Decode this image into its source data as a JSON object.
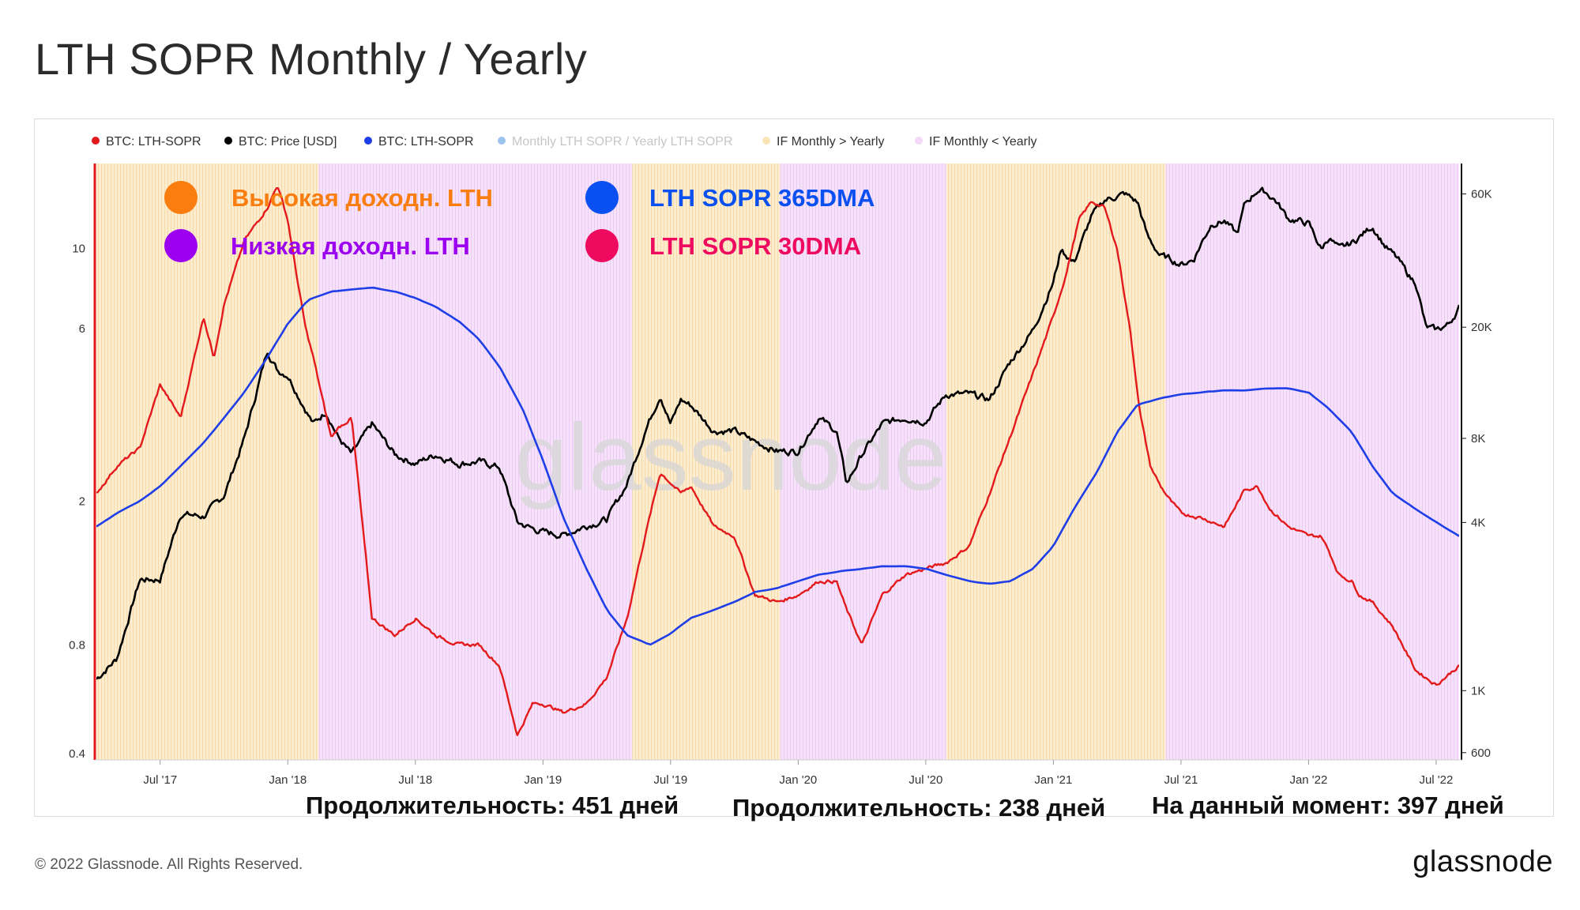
{
  "page": {
    "title": "LTH SOPR Monthly / Yearly",
    "footer": "© 2022 Glassnode. All Rights Reserved.",
    "brand": "glassnode",
    "watermark": "glassnode"
  },
  "legend": [
    {
      "label": "BTC: LTH-SOPR",
      "color": "#e31a1c"
    },
    {
      "label": "BTC: Price [USD]",
      "color": "#000000"
    },
    {
      "label": "BTC: LTH-SOPR",
      "color": "#1f3ee8"
    },
    {
      "label": "Monthly LTH SOPR / Yearly LTH SOPR",
      "color": "#4a90e2",
      "muted": true
    },
    {
      "label": "IF Monthly > Yearly",
      "color": "#fbe3b8"
    },
    {
      "label": "IF Monthly < Yearly",
      "color": "#f3d9f7"
    }
  ],
  "annotations": [
    {
      "label": "Высокая доходн. LTH",
      "dot_color": "#f97d0f",
      "text_color": "#f97d0f"
    },
    {
      "label": "Низкая доходн. LTH",
      "dot_color": "#9b00f0",
      "text_color": "#9b00f0"
    },
    {
      "label": "LTH SOPR 365DMA",
      "dot_color": "#0a4ff0",
      "text_color": "#0a4ff0"
    },
    {
      "label": "LTH SOPR 30DMA",
      "dot_color": "#ee0b5f",
      "text_color": "#ee0b5f"
    }
  ],
  "durations": [
    {
      "label": "Продолжительность: 451 дней"
    },
    {
      "label": "Продолжительность: 238 дней"
    },
    {
      "label": "На данный момент: 397 дней"
    }
  ],
  "chart_data": {
    "type": "line",
    "title": "LTH SOPR Monthly / Yearly",
    "x_range": [
      2017.25,
      2022.59
    ],
    "x_ticks": [
      {
        "label": "Jul '17",
        "t": 2017.5
      },
      {
        "label": "Jan '18",
        "t": 2018.0
      },
      {
        "label": "Jul '18",
        "t": 2018.5
      },
      {
        "label": "Jan '19",
        "t": 2019.0
      },
      {
        "label": "Jul '19",
        "t": 2019.5
      },
      {
        "label": "Jan '20",
        "t": 2020.0
      },
      {
        "label": "Jul '20",
        "t": 2020.5
      },
      {
        "label": "Jan '21",
        "t": 2021.0
      },
      {
        "label": "Jul '21",
        "t": 2021.5
      },
      {
        "label": "Jan '22",
        "t": 2022.0
      },
      {
        "label": "Jul '22",
        "t": 2022.5
      }
    ],
    "y_left": {
      "scale": "log",
      "range": [
        0.4,
        20
      ],
      "ticks": [
        "0.4",
        "0.8",
        "2",
        "6",
        "10"
      ],
      "tick_values": [
        0.4,
        0.8,
        2,
        6,
        10
      ]
    },
    "y_right": {
      "scale": "log",
      "range": [
        580,
        100000
      ],
      "ticks": [
        "600",
        "1K",
        "4K",
        "8K",
        "20K",
        "60K"
      ],
      "tick_values": [
        600,
        1000,
        4000,
        8000,
        20000,
        60000
      ]
    },
    "regimes": [
      {
        "start": 2017.25,
        "end": 2018.12,
        "state": "IF Monthly > Yearly"
      },
      {
        "start": 2018.12,
        "end": 2019.35,
        "state": "IF Monthly < Yearly"
      },
      {
        "start": 2019.35,
        "end": 2019.93,
        "state": "IF Monthly > Yearly"
      },
      {
        "start": 2019.93,
        "end": 2020.58,
        "state": "IF Monthly < Yearly"
      },
      {
        "start": 2020.58,
        "end": 2021.44,
        "state": "IF Monthly > Yearly"
      },
      {
        "start": 2021.44,
        "end": 2022.59,
        "state": "IF Monthly < Yearly"
      }
    ],
    "series": [
      {
        "name": "BTC: Price [USD]",
        "axis": "right",
        "color": "#000000",
        "t": [
          2017.25,
          2017.33,
          2017.42,
          2017.5,
          2017.58,
          2017.67,
          2017.75,
          2017.83,
          2017.92,
          2017.96,
          2018.0,
          2018.05,
          2018.1,
          2018.15,
          2018.2,
          2018.25,
          2018.33,
          2018.42,
          2018.5,
          2018.58,
          2018.67,
          2018.75,
          2018.83,
          2018.9,
          2018.96,
          2019.0,
          2019.08,
          2019.17,
          2019.25,
          2019.33,
          2019.4,
          2019.46,
          2019.5,
          2019.54,
          2019.58,
          2019.67,
          2019.75,
          2019.83,
          2019.92,
          2020.0,
          2020.08,
          2020.15,
          2020.19,
          2020.25,
          2020.33,
          2020.42,
          2020.5,
          2020.58,
          2020.67,
          2020.75,
          2020.83,
          2020.92,
          2021.0,
          2021.03,
          2021.08,
          2021.15,
          2021.2,
          2021.28,
          2021.33,
          2021.37,
          2021.42,
          2021.46,
          2021.5,
          2021.55,
          2021.58,
          2021.62,
          2021.67,
          2021.72,
          2021.75,
          2021.8,
          2021.83,
          2021.87,
          2021.92,
          2022.0,
          2022.05,
          2022.08,
          2022.12,
          2022.17,
          2022.25,
          2022.3,
          2022.35,
          2022.4,
          2022.42,
          2022.46,
          2022.5,
          2022.55,
          2022.59
        ],
        "values": [
          1100,
          1300,
          2500,
          2500,
          4300,
          4200,
          5000,
          8000,
          16500,
          14000,
          13500,
          11000,
          9000,
          10000,
          8000,
          7000,
          9000,
          7000,
          6500,
          7000,
          6500,
          6600,
          6300,
          4000,
          3800,
          3700,
          3600,
          3900,
          4100,
          5500,
          8500,
          11500,
          9000,
          11000,
          10500,
          8500,
          8500,
          7800,
          7200,
          7200,
          9500,
          8500,
          5500,
          7000,
          9000,
          9500,
          9200,
          11500,
          11500,
          11000,
          15000,
          19500,
          29000,
          38000,
          34000,
          50000,
          57000,
          60000,
          56000,
          42000,
          36000,
          35000,
          33500,
          35000,
          40000,
          47000,
          48000,
          43000,
          55000,
          62000,
          61000,
          57000,
          49000,
          47000,
          38000,
          42000,
          38000,
          40000,
          46000,
          39000,
          35000,
          30000,
          29000,
          20000,
          19500,
          20500,
          23500
        ]
      },
      {
        "name": "BTC: LTH-SOPR",
        "axis": "left",
        "color": "#e31a1c",
        "t": [
          2017.25,
          2017.33,
          2017.42,
          2017.5,
          2017.58,
          2017.67,
          2017.71,
          2017.75,
          2017.83,
          2017.92,
          2017.96,
          2018.0,
          2018.04,
          2018.07,
          2018.1,
          2018.13,
          2018.17,
          2018.2,
          2018.25,
          2018.33,
          2018.42,
          2018.5,
          2018.58,
          2018.67,
          2018.75,
          2018.83,
          2018.9,
          2018.96,
          2019.0,
          2019.08,
          2019.17,
          2019.25,
          2019.33,
          2019.4,
          2019.46,
          2019.5,
          2019.54,
          2019.58,
          2019.67,
          2019.75,
          2019.83,
          2019.92,
          2020.0,
          2020.08,
          2020.15,
          2020.19,
          2020.25,
          2020.33,
          2020.42,
          2020.5,
          2020.58,
          2020.67,
          2020.75,
          2020.83,
          2020.92,
          2021.0,
          2021.05,
          2021.1,
          2021.15,
          2021.2,
          2021.25,
          2021.3,
          2021.34,
          2021.38,
          2021.42,
          2021.46,
          2021.5,
          2021.58,
          2021.67,
          2021.75,
          2021.8,
          2021.85,
          2021.92,
          2022.0,
          2022.05,
          2022.08,
          2022.12,
          2022.17,
          2022.2,
          2022.25,
          2022.33,
          2022.42,
          2022.5,
          2022.59
        ],
        "values": [
          2.1,
          2.5,
          2.8,
          4.2,
          3.4,
          6.5,
          5.0,
          7.0,
          10.5,
          13.0,
          15.0,
          12.0,
          8.0,
          6.0,
          5.0,
          4.0,
          3.0,
          3.2,
          3.4,
          0.95,
          0.85,
          0.95,
          0.85,
          0.8,
          0.8,
          0.7,
          0.45,
          0.55,
          0.55,
          0.52,
          0.55,
          0.65,
          0.95,
          1.6,
          2.4,
          2.25,
          2.1,
          2.2,
          1.7,
          1.6,
          1.1,
          1.05,
          1.1,
          1.2,
          1.2,
          1.0,
          0.8,
          1.1,
          1.25,
          1.3,
          1.35,
          1.5,
          2.1,
          3.0,
          4.5,
          6.5,
          8.5,
          12.0,
          13.5,
          13.0,
          10.0,
          6.0,
          3.5,
          2.5,
          2.2,
          2.0,
          1.85,
          1.8,
          1.7,
          2.15,
          2.2,
          1.9,
          1.7,
          1.6,
          1.6,
          1.45,
          1.25,
          1.2,
          1.1,
          1.05,
          0.9,
          0.68,
          0.62,
          0.7
        ]
      },
      {
        "name": "BTC: LTH-SOPR",
        "axis": "left",
        "color": "#1f3ee8",
        "t": [
          2017.25,
          2017.33,
          2017.42,
          2017.5,
          2017.58,
          2017.67,
          2017.75,
          2017.83,
          2017.92,
          2018.0,
          2018.08,
          2018.17,
          2018.25,
          2018.33,
          2018.42,
          2018.5,
          2018.58,
          2018.67,
          2018.75,
          2018.83,
          2018.92,
          2019.0,
          2019.08,
          2019.17,
          2019.25,
          2019.33,
          2019.42,
          2019.5,
          2019.58,
          2019.67,
          2019.75,
          2019.83,
          2019.92,
          2020.0,
          2020.08,
          2020.17,
          2020.25,
          2020.33,
          2020.42,
          2020.5,
          2020.58,
          2020.67,
          2020.75,
          2020.83,
          2020.92,
          2021.0,
          2021.08,
          2021.17,
          2021.25,
          2021.33,
          2021.42,
          2021.5,
          2021.58,
          2021.67,
          2021.75,
          2021.83,
          2021.92,
          2022.0,
          2022.08,
          2022.17,
          2022.25,
          2022.33,
          2022.42,
          2022.5,
          2022.59
        ],
        "values": [
          1.7,
          1.85,
          2.0,
          2.2,
          2.5,
          2.9,
          3.4,
          4.0,
          5.0,
          6.2,
          7.2,
          7.6,
          7.7,
          7.8,
          7.6,
          7.3,
          6.9,
          6.3,
          5.6,
          4.7,
          3.6,
          2.6,
          1.8,
          1.3,
          1.0,
          0.85,
          0.8,
          0.86,
          0.95,
          1.0,
          1.05,
          1.12,
          1.15,
          1.2,
          1.25,
          1.28,
          1.3,
          1.32,
          1.32,
          1.3,
          1.25,
          1.2,
          1.18,
          1.2,
          1.3,
          1.5,
          1.9,
          2.4,
          3.1,
          3.7,
          3.85,
          3.95,
          4.0,
          4.05,
          4.05,
          4.1,
          4.1,
          4.0,
          3.6,
          3.1,
          2.5,
          2.1,
          1.9,
          1.75,
          1.6
        ]
      }
    ]
  }
}
